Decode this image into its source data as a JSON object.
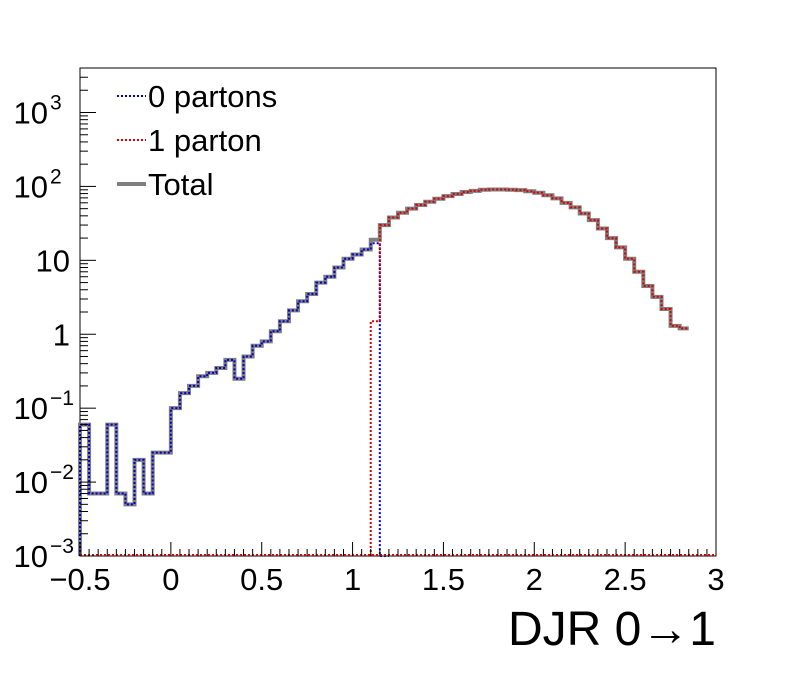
{
  "chart_data": {
    "type": "line",
    "title": "",
    "xlabel": "DJR 0→1",
    "ylabel": "",
    "xlim": [
      -0.5,
      3.0
    ],
    "ylim": [
      0.001,
      4000
    ],
    "y_scale": "log",
    "grid": false,
    "legend_position": "top-left",
    "x_ticks": [
      {
        "value": -0.5,
        "label": "−0.5"
      },
      {
        "value": 0,
        "label": "0"
      },
      {
        "value": 0.5,
        "label": "0.5"
      },
      {
        "value": 1,
        "label": "1"
      },
      {
        "value": 1.5,
        "label": "1.5"
      },
      {
        "value": 2,
        "label": "2"
      },
      {
        "value": 2.5,
        "label": "2.5"
      },
      {
        "value": 3,
        "label": "3"
      }
    ],
    "y_ticks": [
      {
        "value": 0.001,
        "base": "10",
        "exp": "−3"
      },
      {
        "value": 0.01,
        "base": "10",
        "exp": "−2"
      },
      {
        "value": 0.1,
        "base": "10",
        "exp": "−1"
      },
      {
        "value": 1,
        "base": "1",
        "exp": ""
      },
      {
        "value": 10,
        "base": "10",
        "exp": ""
      },
      {
        "value": 100,
        "base": "10",
        "exp": "2"
      },
      {
        "value": 1000,
        "base": "10",
        "exp": "3"
      }
    ],
    "bin_width": 0.05,
    "series": [
      {
        "name": "0 partons",
        "color": "#0000cc",
        "style": "dotted",
        "bins": [
          {
            "x": -0.5,
            "y": 0.06
          },
          {
            "x": -0.45,
            "y": 0.007
          },
          {
            "x": -0.4,
            "y": 0.007
          },
          {
            "x": -0.35,
            "y": 0.06
          },
          {
            "x": -0.3,
            "y": 0.007
          },
          {
            "x": -0.25,
            "y": 0.005
          },
          {
            "x": -0.2,
            "y": 0.02
          },
          {
            "x": -0.15,
            "y": 0.007
          },
          {
            "x": -0.1,
            "y": 0.025
          },
          {
            "x": -0.05,
            "y": 0.025
          },
          {
            "x": 0,
            "y": 0.1
          },
          {
            "x": 0.05,
            "y": 0.16
          },
          {
            "x": 0.1,
            "y": 0.2
          },
          {
            "x": 0.15,
            "y": 0.27
          },
          {
            "x": 0.2,
            "y": 0.3
          },
          {
            "x": 0.25,
            "y": 0.35
          },
          {
            "x": 0.3,
            "y": 0.45
          },
          {
            "x": 0.35,
            "y": 0.25
          },
          {
            "x": 0.4,
            "y": 0.5
          },
          {
            "x": 0.45,
            "y": 0.7
          },
          {
            "x": 0.5,
            "y": 0.8
          },
          {
            "x": 0.55,
            "y": 1.1
          },
          {
            "x": 0.6,
            "y": 1.5
          },
          {
            "x": 0.65,
            "y": 2.1
          },
          {
            "x": 0.7,
            "y": 2.8
          },
          {
            "x": 0.75,
            "y": 3.5
          },
          {
            "x": 0.8,
            "y": 5.0
          },
          {
            "x": 0.85,
            "y": 6.0
          },
          {
            "x": 0.9,
            "y": 8.0
          },
          {
            "x": 0.95,
            "y": 10.5
          },
          {
            "x": 1.0,
            "y": 12.0
          },
          {
            "x": 1.05,
            "y": 14.0
          },
          {
            "x": 1.1,
            "y": 17.0
          },
          {
            "x": 1.15,
            "y": 0.001
          }
        ]
      },
      {
        "name": "1 parton",
        "color": "#dd0000",
        "style": "dotted",
        "bins": [
          {
            "x": 1.1,
            "y": 1.5
          },
          {
            "x": 1.15,
            "y": 30
          },
          {
            "x": 1.2,
            "y": 38
          },
          {
            "x": 1.25,
            "y": 44
          },
          {
            "x": 1.3,
            "y": 50
          },
          {
            "x": 1.35,
            "y": 56
          },
          {
            "x": 1.4,
            "y": 62
          },
          {
            "x": 1.45,
            "y": 68
          },
          {
            "x": 1.5,
            "y": 74
          },
          {
            "x": 1.55,
            "y": 79
          },
          {
            "x": 1.6,
            "y": 84
          },
          {
            "x": 1.65,
            "y": 87
          },
          {
            "x": 1.7,
            "y": 90
          },
          {
            "x": 1.75,
            "y": 91
          },
          {
            "x": 1.8,
            "y": 91
          },
          {
            "x": 1.85,
            "y": 90
          },
          {
            "x": 1.9,
            "y": 89
          },
          {
            "x": 1.95,
            "y": 86
          },
          {
            "x": 2.0,
            "y": 82
          },
          {
            "x": 2.05,
            "y": 76
          },
          {
            "x": 2.1,
            "y": 69
          },
          {
            "x": 2.15,
            "y": 60
          },
          {
            "x": 2.2,
            "y": 52
          },
          {
            "x": 2.25,
            "y": 43
          },
          {
            "x": 2.3,
            "y": 35
          },
          {
            "x": 2.35,
            "y": 27
          },
          {
            "x": 2.4,
            "y": 20
          },
          {
            "x": 2.45,
            "y": 15
          },
          {
            "x": 2.5,
            "y": 10.5
          },
          {
            "x": 2.55,
            "y": 7.0
          },
          {
            "x": 2.6,
            "y": 4.5
          },
          {
            "x": 2.65,
            "y": 3.2
          },
          {
            "x": 2.7,
            "y": 2.2
          },
          {
            "x": 2.75,
            "y": 1.3
          },
          {
            "x": 2.8,
            "y": 1.2
          }
        ]
      },
      {
        "name": "Total",
        "color": "#7f7f7f",
        "style": "solid",
        "bins": [
          {
            "x": -0.5,
            "y": 0.06
          },
          {
            "x": -0.45,
            "y": 0.007
          },
          {
            "x": -0.4,
            "y": 0.007
          },
          {
            "x": -0.35,
            "y": 0.06
          },
          {
            "x": -0.3,
            "y": 0.007
          },
          {
            "x": -0.25,
            "y": 0.005
          },
          {
            "x": -0.2,
            "y": 0.02
          },
          {
            "x": -0.15,
            "y": 0.007
          },
          {
            "x": -0.1,
            "y": 0.025
          },
          {
            "x": -0.05,
            "y": 0.025
          },
          {
            "x": 0,
            "y": 0.1
          },
          {
            "x": 0.05,
            "y": 0.16
          },
          {
            "x": 0.1,
            "y": 0.2
          },
          {
            "x": 0.15,
            "y": 0.27
          },
          {
            "x": 0.2,
            "y": 0.3
          },
          {
            "x": 0.25,
            "y": 0.35
          },
          {
            "x": 0.3,
            "y": 0.45
          },
          {
            "x": 0.35,
            "y": 0.25
          },
          {
            "x": 0.4,
            "y": 0.5
          },
          {
            "x": 0.45,
            "y": 0.7
          },
          {
            "x": 0.5,
            "y": 0.8
          },
          {
            "x": 0.55,
            "y": 1.1
          },
          {
            "x": 0.6,
            "y": 1.5
          },
          {
            "x": 0.65,
            "y": 2.1
          },
          {
            "x": 0.7,
            "y": 2.8
          },
          {
            "x": 0.75,
            "y": 3.5
          },
          {
            "x": 0.8,
            "y": 5.0
          },
          {
            "x": 0.85,
            "y": 6.0
          },
          {
            "x": 0.9,
            "y": 8.0
          },
          {
            "x": 0.95,
            "y": 10.5
          },
          {
            "x": 1.0,
            "y": 12.0
          },
          {
            "x": 1.05,
            "y": 14.0
          },
          {
            "x": 1.1,
            "y": 19.0
          },
          {
            "x": 1.15,
            "y": 30
          },
          {
            "x": 1.2,
            "y": 38
          },
          {
            "x": 1.25,
            "y": 44
          },
          {
            "x": 1.3,
            "y": 50
          },
          {
            "x": 1.35,
            "y": 56
          },
          {
            "x": 1.4,
            "y": 62
          },
          {
            "x": 1.45,
            "y": 68
          },
          {
            "x": 1.5,
            "y": 74
          },
          {
            "x": 1.55,
            "y": 79
          },
          {
            "x": 1.6,
            "y": 84
          },
          {
            "x": 1.65,
            "y": 87
          },
          {
            "x": 1.7,
            "y": 90
          },
          {
            "x": 1.75,
            "y": 91
          },
          {
            "x": 1.8,
            "y": 91
          },
          {
            "x": 1.85,
            "y": 90
          },
          {
            "x": 1.9,
            "y": 89
          },
          {
            "x": 1.95,
            "y": 86
          },
          {
            "x": 2.0,
            "y": 82
          },
          {
            "x": 2.05,
            "y": 76
          },
          {
            "x": 2.1,
            "y": 69
          },
          {
            "x": 2.15,
            "y": 60
          },
          {
            "x": 2.2,
            "y": 52
          },
          {
            "x": 2.25,
            "y": 43
          },
          {
            "x": 2.3,
            "y": 35
          },
          {
            "x": 2.35,
            "y": 27
          },
          {
            "x": 2.4,
            "y": 20
          },
          {
            "x": 2.45,
            "y": 15
          },
          {
            "x": 2.5,
            "y": 10.5
          },
          {
            "x": 2.55,
            "y": 7.0
          },
          {
            "x": 2.6,
            "y": 4.5
          },
          {
            "x": 2.65,
            "y": 3.2
          },
          {
            "x": 2.7,
            "y": 2.2
          },
          {
            "x": 2.75,
            "y": 1.3
          },
          {
            "x": 2.8,
            "y": 1.2
          }
        ]
      }
    ]
  }
}
